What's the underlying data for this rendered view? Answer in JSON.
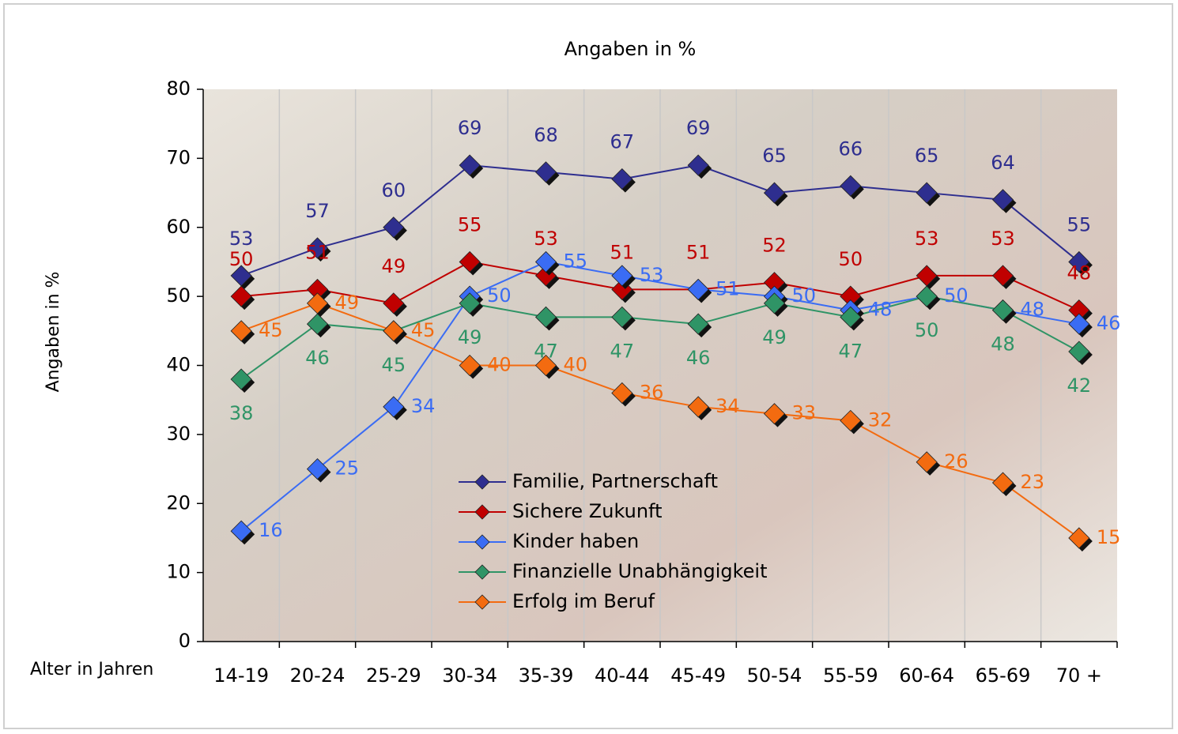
{
  "chart_data": {
    "type": "line",
    "title": "Angaben in %",
    "y_label": "Angaben in %",
    "x_label": "Alter in Jahren",
    "categories": [
      "14-19",
      "20-24",
      "25-29",
      "30-34",
      "35-39",
      "40-44",
      "45-49",
      "50-54",
      "55-59",
      "60-64",
      "65-69",
      "70 +"
    ],
    "series": [
      {
        "name": "Familie, Partnerschaft",
        "color": "#2e2e8f",
        "values": [
          53,
          57,
          60,
          69,
          68,
          67,
          69,
          65,
          66,
          65,
          64,
          55
        ]
      },
      {
        "name": "Sichere Zukunft",
        "color": "#c00000",
        "values": [
          50,
          51,
          49,
          55,
          53,
          51,
          51,
          52,
          50,
          53,
          53,
          48
        ]
      },
      {
        "name": "Kinder haben",
        "color": "#3a6cf4",
        "values": [
          16,
          25,
          34,
          50,
          55,
          53,
          51,
          50,
          48,
          50,
          48,
          46
        ]
      },
      {
        "name": "Finanzielle Unabhängigkeit",
        "color": "#2f9466",
        "values": [
          38,
          46,
          45,
          49,
          47,
          47,
          46,
          49,
          47,
          50,
          48,
          42
        ]
      },
      {
        "name": "Erfolg im Beruf",
        "color": "#f36b10",
        "values": [
          45,
          49,
          45,
          40,
          40,
          36,
          34,
          33,
          32,
          26,
          23,
          15
        ]
      }
    ],
    "ylim": [
      0,
      80
    ],
    "yticks": [
      0,
      10,
      20,
      30,
      40,
      50,
      60,
      70,
      80
    ],
    "grid": true,
    "legend": "bottom"
  }
}
